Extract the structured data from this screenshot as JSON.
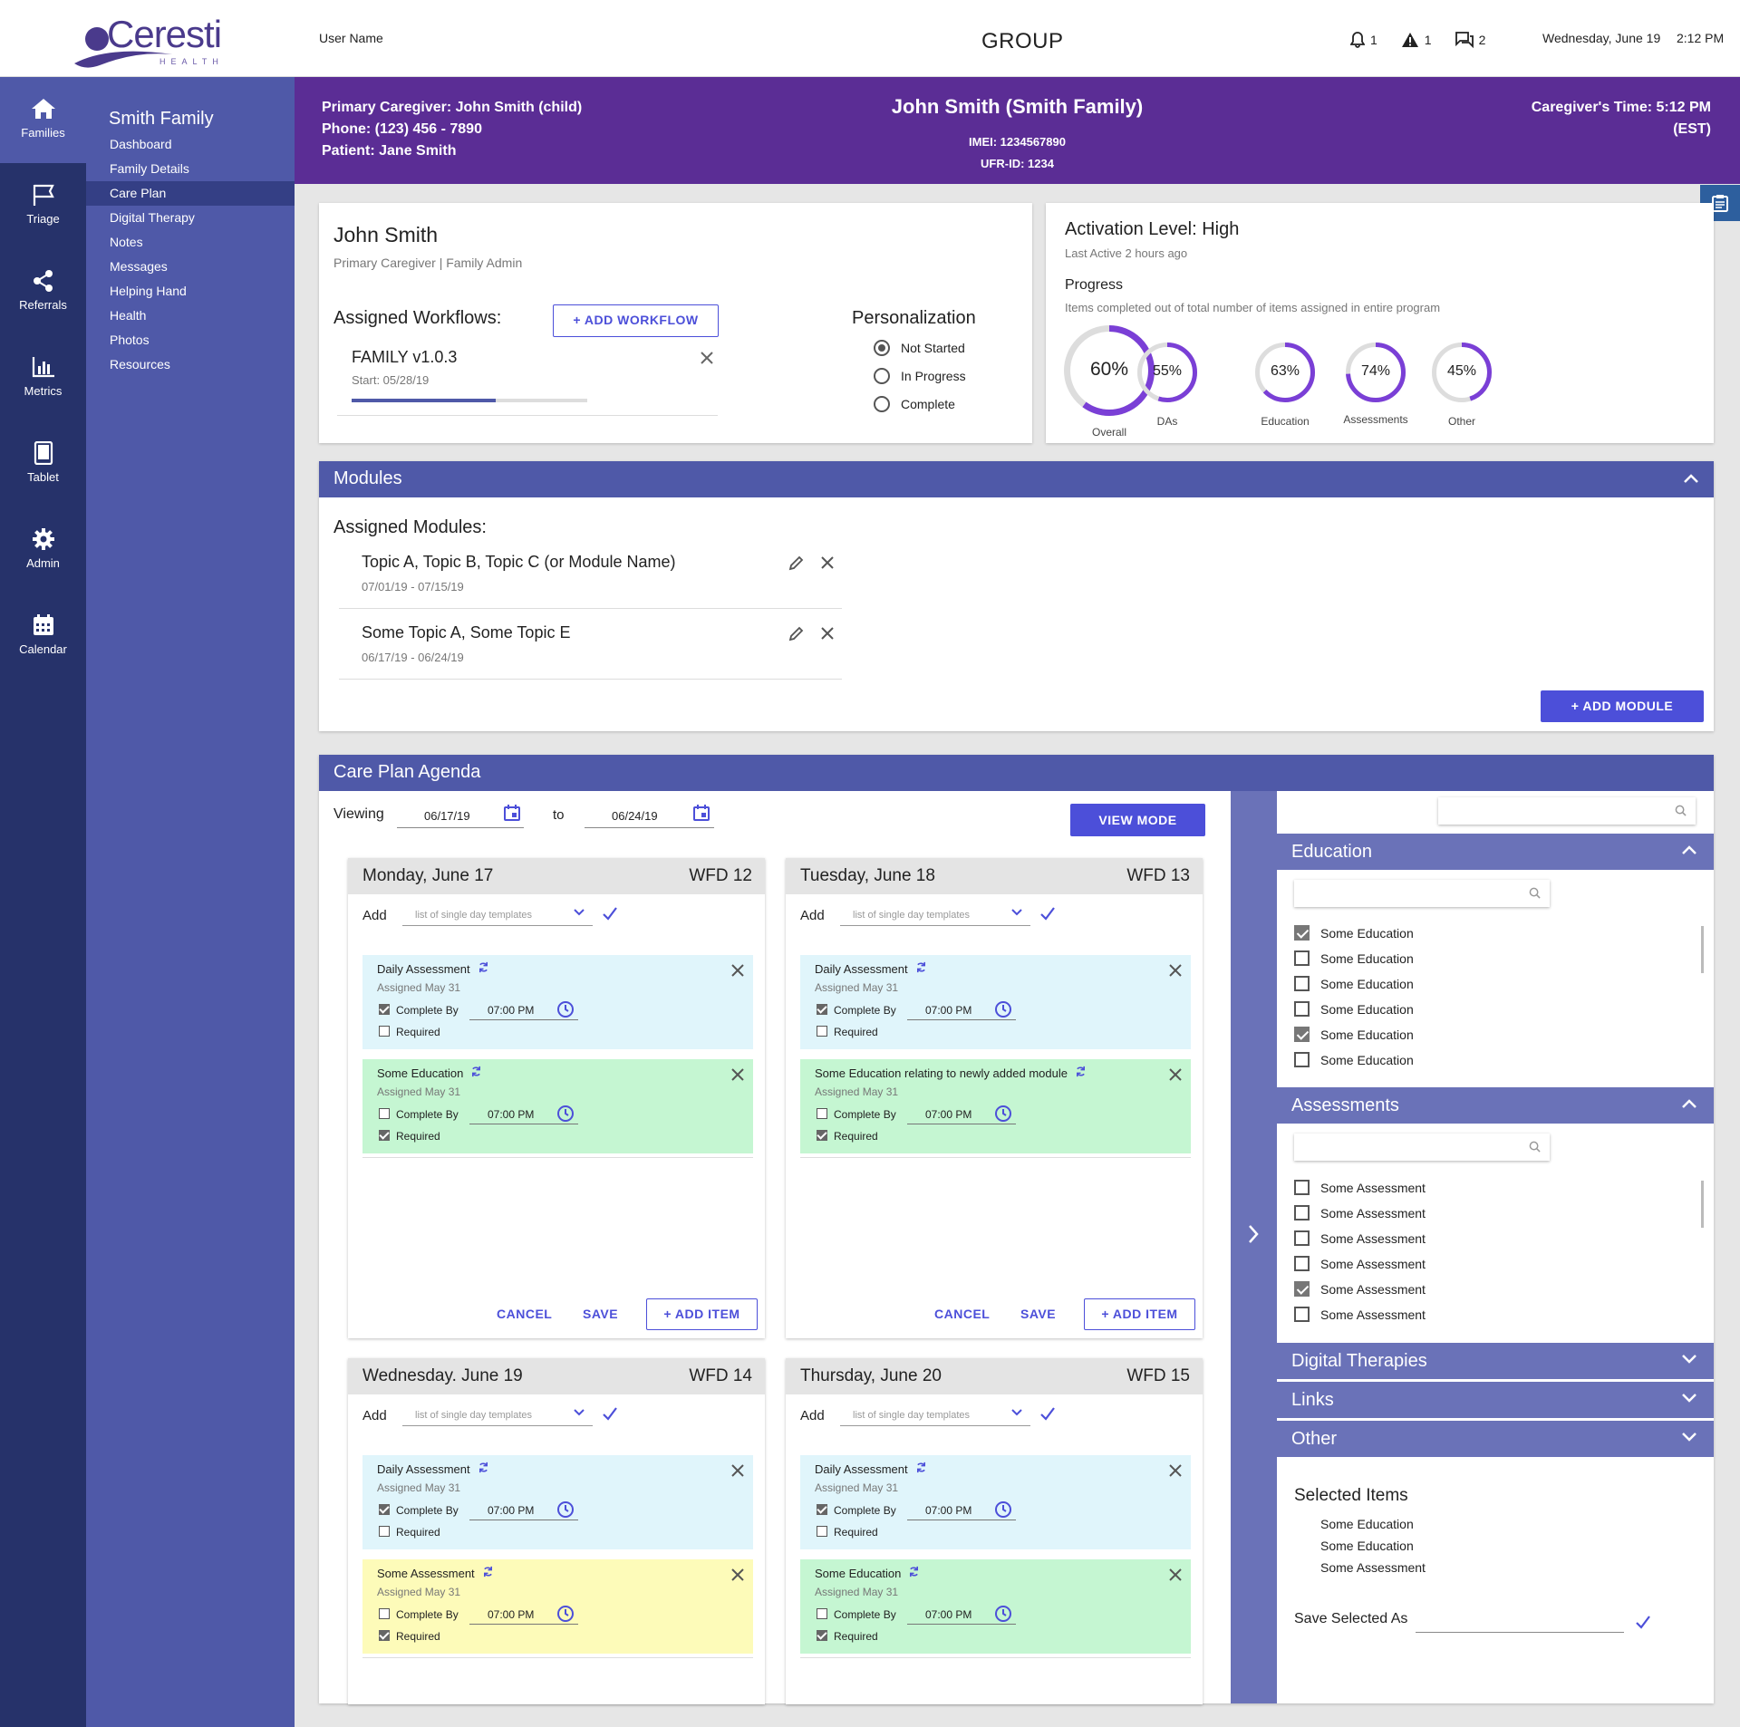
{
  "brand": {
    "name": "Ceresti",
    "sub": "HEALTH"
  },
  "topbar": {
    "user": "User Name",
    "title": "GROUP",
    "notifications": "1",
    "alerts": "1",
    "messages": "2",
    "date": "Wednesday, June 19",
    "time": "2:12 PM"
  },
  "rail": [
    {
      "label": "Families",
      "icon": "home-icon"
    },
    {
      "label": "Triage",
      "icon": "flag-icon"
    },
    {
      "label": "Referrals",
      "icon": "share-icon"
    },
    {
      "label": "Metrics",
      "icon": "bar-chart-icon"
    },
    {
      "label": "Tablet",
      "icon": "tablet-icon"
    },
    {
      "label": "Admin",
      "icon": "gear-icon"
    },
    {
      "label": "Calendar",
      "icon": "calendar-icon"
    }
  ],
  "subnav": {
    "title": "Smith Family",
    "items": [
      "Dashboard",
      "Family Details",
      "Care Plan",
      "Digital Therapy",
      "Notes",
      "Messages",
      "Helping Hand",
      "Health",
      "Photos",
      "Resources"
    ]
  },
  "header": {
    "caregiver": "Primary Caregiver: John Smith (child)",
    "phone": "Phone: (123) 456 - 7890",
    "patient": "Patient: Jane Smith",
    "name": "John Smith (Smith Family)",
    "imei": "IMEI: 1234567890",
    "ufr": "UFR-ID: 1234",
    "caregiver_time": "Caregiver's Time: 5:12 PM",
    "tz": "(EST)"
  },
  "profile": {
    "name": "John Smith",
    "role": "Primary Caregiver | Family Admin",
    "workflows_label": "Assigned Workflows:",
    "add_workflow": "+ ADD WORKFLOW",
    "workflow_name": "FAMILY v1.0.3",
    "workflow_start": "Start: 05/28/19",
    "workflow_progress": 0.61,
    "personalization": "Personalization",
    "options": [
      "Not Started",
      "In Progress",
      "Complete"
    ]
  },
  "activation": {
    "title": "Activation Level: High",
    "last_active": "Last Active 2 hours ago",
    "progress": "Progress",
    "progress_desc": "Items completed out of total number of items assigned in entire program",
    "rings": [
      {
        "pct": "60%",
        "value": 60,
        "label": "Overall"
      },
      {
        "pct": "55%",
        "value": 55,
        "label": "DAs"
      },
      {
        "pct": "63%",
        "value": 63,
        "label": "Education"
      },
      {
        "pct": "74%",
        "value": 74,
        "label": "Assessments"
      },
      {
        "pct": "45%",
        "value": 45,
        "label": "Other"
      }
    ]
  },
  "modules": {
    "title": "Modules",
    "assigned": "Assigned Modules:",
    "list": [
      {
        "name": "Topic A, Topic B, Topic C (or Module Name)",
        "dates": "07/01/19 - 07/15/19"
      },
      {
        "name": "Some Topic A, Some Topic E",
        "dates": "06/17/19 - 06/24/19"
      }
    ],
    "add": "+ ADD MODULE"
  },
  "agenda": {
    "title": "Care Plan Agenda",
    "viewing": "Viewing",
    "from": "06/17/19",
    "to_label": "to",
    "to": "06/24/19",
    "view_mode": "VIEW MODE",
    "add": "Add",
    "template_placeholder": "list of single day templates",
    "cancel": "CANCEL",
    "save": "SAVE",
    "add_item": "+ ADD ITEM",
    "complete_by": "Complete By",
    "required": "Required",
    "days": [
      {
        "day": "Monday, June 17",
        "wfd": "WFD 12",
        "items": [
          {
            "name": "Daily Assessment",
            "assigned": "Assigned May 31",
            "time": "07:00 PM",
            "complete": true,
            "required": false,
            "color": "blue"
          },
          {
            "name": "Some Education",
            "assigned": "Assigned May 31",
            "time": "07:00 PM",
            "complete": false,
            "required": true,
            "color": "green"
          }
        ]
      },
      {
        "day": "Tuesday, June 18",
        "wfd": "WFD 13",
        "items": [
          {
            "name": "Daily Assessment",
            "assigned": "Assigned May 31",
            "time": "07:00 PM",
            "complete": true,
            "required": false,
            "color": "blue"
          },
          {
            "name": "Some Education relating to newly added module",
            "assigned": "Assigned May 31",
            "time": "07:00 PM",
            "complete": false,
            "required": true,
            "color": "green"
          }
        ]
      },
      {
        "day": "Wednesday. June 19",
        "wfd": "WFD 14",
        "items": [
          {
            "name": "Daily Assessment",
            "assigned": "Assigned May 31",
            "time": "07:00 PM",
            "complete": true,
            "required": false,
            "color": "blue"
          },
          {
            "name": "Some Assessment",
            "assigned": "Assigned May 31",
            "time": "07:00 PM",
            "complete": false,
            "required": true,
            "color": "yellow"
          }
        ]
      },
      {
        "day": "Thursday, June 20",
        "wfd": "WFD 15",
        "items": [
          {
            "name": "Daily Assessment",
            "assigned": "Assigned May 31",
            "time": "07:00 PM",
            "complete": true,
            "required": false,
            "color": "blue"
          },
          {
            "name": "Some Education",
            "assigned": "Assigned May 31",
            "time": "07:00 PM",
            "complete": false,
            "required": true,
            "color": "green"
          }
        ]
      }
    ]
  },
  "library": {
    "education": {
      "title": "Education",
      "items": [
        {
          "label": "Some Education",
          "checked": true
        },
        {
          "label": "Some Education",
          "checked": false
        },
        {
          "label": "Some Education",
          "checked": false
        },
        {
          "label": "Some Education",
          "checked": false
        },
        {
          "label": "Some Education",
          "checked": true
        },
        {
          "label": "Some Education",
          "checked": false
        }
      ]
    },
    "assessments": {
      "title": "Assessments",
      "items": [
        {
          "label": "Some Assessment",
          "checked": false
        },
        {
          "label": "Some Assessment",
          "checked": false
        },
        {
          "label": "Some Assessment",
          "checked": false
        },
        {
          "label": "Some Assessment",
          "checked": false
        },
        {
          "label": "Some Assessment",
          "checked": true
        },
        {
          "label": "Some Assessment",
          "checked": false
        }
      ]
    },
    "collapsed": [
      "Digital Therapies",
      "Links",
      "Other"
    ],
    "selected_title": "Selected Items",
    "selected": [
      "Some Education",
      "Some Education",
      "Some Assessment"
    ],
    "save_as": "Save Selected As"
  },
  "colors": {
    "primary": "#4f59a8",
    "header": "#5b2d95",
    "rail": "#26326a",
    "accent": "#4c4fd9",
    "ring": "#7a3fd6"
  }
}
